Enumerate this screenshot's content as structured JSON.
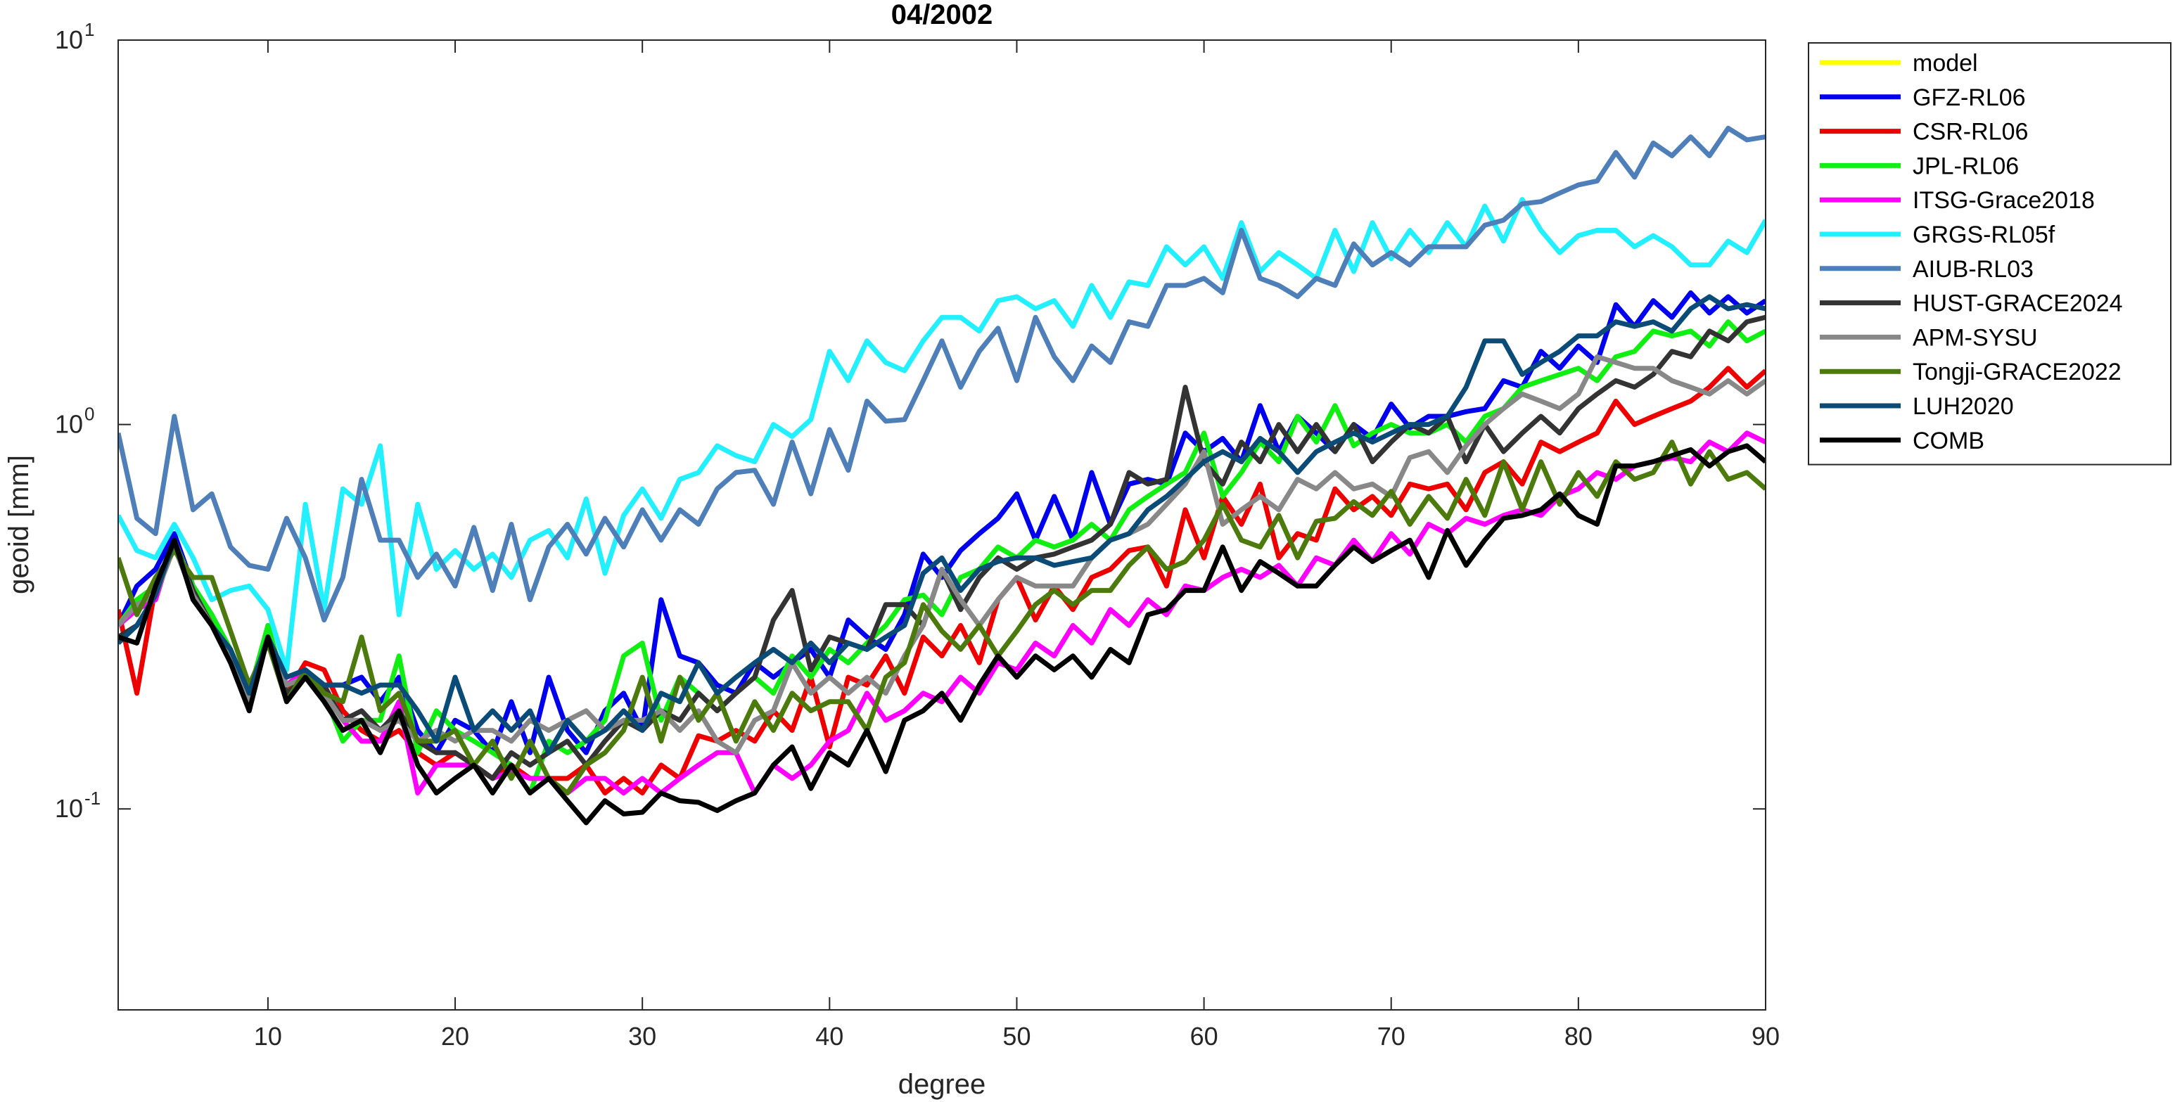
{
  "chart_data": {
    "type": "line",
    "title": "04/2002",
    "xlabel": "degree",
    "ylabel": "geoid [mm]",
    "xlim": [
      2,
      90
    ],
    "ylim": [
      0.03,
      10
    ],
    "log_y": true,
    "legend": "northeastoutside",
    "xticks": [
      10,
      20,
      30,
      40,
      50,
      60,
      70,
      80,
      90
    ],
    "yticks": [
      {
        "value": 0.1,
        "label": "10",
        "exponent": "-1"
      },
      {
        "value": 1,
        "label": "10",
        "exponent": "0"
      },
      {
        "value": 10,
        "label": "10",
        "exponent": "1"
      }
    ],
    "x": [
      2,
      3,
      4,
      5,
      6,
      7,
      8,
      9,
      10,
      11,
      12,
      13,
      14,
      15,
      16,
      17,
      18,
      19,
      20,
      21,
      22,
      23,
      24,
      25,
      26,
      27,
      28,
      29,
      30,
      31,
      32,
      33,
      34,
      35,
      36,
      37,
      38,
      39,
      40,
      41,
      42,
      43,
      44,
      45,
      46,
      47,
      48,
      49,
      50,
      51,
      52,
      53,
      54,
      55,
      56,
      57,
      58,
      59,
      60,
      61,
      62,
      63,
      64,
      65,
      66,
      67,
      68,
      69,
      70,
      71,
      72,
      73,
      74,
      75,
      76,
      77,
      78,
      79,
      80,
      81,
      82,
      83,
      84,
      85,
      86,
      87,
      88,
      89,
      90
    ],
    "series": [
      {
        "name": "model",
        "color": "#ffff00",
        "values": [
          null,
          null,
          null,
          null,
          null,
          null,
          null,
          null,
          null,
          null,
          null,
          null,
          null,
          null,
          null,
          null,
          null,
          null,
          null,
          null,
          null,
          null,
          null,
          null,
          null,
          null,
          null,
          null,
          null,
          null,
          null,
          null,
          null,
          null,
          null,
          null,
          null,
          null,
          null,
          null,
          null,
          null,
          null,
          null,
          null,
          null,
          null,
          null,
          null,
          null,
          null,
          null,
          null,
          null,
          null,
          null,
          null,
          null,
          null,
          null,
          null,
          null,
          null,
          null,
          null,
          null,
          null,
          null,
          null,
          null,
          null,
          null,
          null,
          null,
          null,
          null,
          null,
          null,
          null,
          null,
          null,
          null,
          null,
          null,
          null,
          null,
          null,
          null,
          null
        ]
      },
      {
        "name": "GFZ-RL06",
        "color": "#0000ee",
        "values": [
          0.3,
          0.38,
          0.42,
          0.52,
          0.38,
          0.32,
          0.25,
          0.18,
          0.3,
          0.2,
          0.23,
          0.21,
          0.21,
          0.22,
          0.19,
          0.22,
          0.16,
          0.14,
          0.17,
          0.16,
          0.14,
          0.19,
          0.14,
          0.22,
          0.16,
          0.14,
          0.18,
          0.2,
          0.16,
          0.35,
          0.25,
          0.24,
          0.21,
          0.2,
          0.24,
          0.22,
          0.24,
          0.26,
          0.22,
          0.31,
          0.28,
          0.26,
          0.32,
          0.46,
          0.4,
          0.47,
          0.52,
          0.57,
          0.66,
          0.5,
          0.65,
          0.5,
          0.75,
          0.55,
          0.7,
          0.72,
          0.7,
          0.95,
          0.85,
          0.92,
          0.8,
          1.12,
          0.85,
          1.05,
          0.95,
          0.85,
          1.0,
          0.92,
          1.13,
          0.98,
          1.05,
          1.05,
          1.08,
          1.1,
          1.3,
          1.25,
          1.55,
          1.4,
          1.6,
          1.45,
          2.05,
          1.8,
          2.1,
          1.9,
          2.2,
          1.95,
          2.15,
          1.95,
          2.1
        ]
      },
      {
        "name": "CSR-RL06",
        "color": "#ee0000",
        "values": [
          0.33,
          0.2,
          0.38,
          0.48,
          0.38,
          0.3,
          0.26,
          0.19,
          0.28,
          0.2,
          0.24,
          0.23,
          0.18,
          0.16,
          0.15,
          0.16,
          0.14,
          0.13,
          0.14,
          0.13,
          0.12,
          0.13,
          0.12,
          0.12,
          0.12,
          0.13,
          0.11,
          0.12,
          0.11,
          0.13,
          0.12,
          0.155,
          0.15,
          0.16,
          0.15,
          0.18,
          0.16,
          0.22,
          0.145,
          0.22,
          0.21,
          0.25,
          0.2,
          0.28,
          0.25,
          0.3,
          0.24,
          0.35,
          0.4,
          0.31,
          0.38,
          0.33,
          0.4,
          0.42,
          0.47,
          0.48,
          0.38,
          0.6,
          0.45,
          0.65,
          0.55,
          0.7,
          0.45,
          0.52,
          0.5,
          0.68,
          0.6,
          0.65,
          0.58,
          0.7,
          0.68,
          0.7,
          0.6,
          0.75,
          0.8,
          0.7,
          0.9,
          0.85,
          0.9,
          0.95,
          1.15,
          1.0,
          1.05,
          1.1,
          1.15,
          1.25,
          1.4,
          1.25,
          1.38
        ]
      },
      {
        "name": "JPL-RL06",
        "color": "#11ee11",
        "values": [
          0.3,
          0.35,
          0.38,
          0.5,
          0.38,
          0.32,
          0.26,
          0.2,
          0.3,
          0.2,
          0.22,
          0.2,
          0.15,
          0.17,
          0.17,
          0.25,
          0.14,
          0.18,
          0.16,
          0.15,
          0.14,
          0.13,
          0.11,
          0.15,
          0.14,
          0.15,
          0.17,
          0.25,
          0.27,
          0.17,
          0.22,
          0.2,
          0.18,
          0.2,
          0.22,
          0.2,
          0.25,
          0.22,
          0.26,
          0.24,
          0.27,
          0.3,
          0.35,
          0.36,
          0.32,
          0.4,
          0.42,
          0.48,
          0.45,
          0.5,
          0.48,
          0.5,
          0.55,
          0.5,
          0.6,
          0.65,
          0.7,
          0.75,
          0.95,
          0.65,
          0.75,
          0.9,
          0.8,
          1.05,
          0.9,
          1.12,
          0.88,
          0.95,
          1.0,
          0.95,
          0.95,
          1.0,
          0.9,
          1.05,
          1.1,
          1.25,
          1.3,
          1.35,
          1.4,
          1.3,
          1.5,
          1.55,
          1.75,
          1.7,
          1.75,
          1.6,
          1.85,
          1.65,
          1.75
        ]
      },
      {
        "name": "ITSG-Grace2018",
        "color": "#ff00ff",
        "values": [
          0.3,
          0.33,
          0.35,
          0.5,
          0.37,
          0.3,
          0.25,
          0.19,
          0.28,
          0.21,
          0.23,
          0.2,
          0.17,
          0.15,
          0.15,
          0.19,
          0.11,
          0.13,
          0.13,
          0.13,
          0.12,
          0.125,
          0.12,
          0.12,
          0.11,
          0.12,
          0.12,
          0.11,
          0.12,
          0.11,
          0.12,
          0.13,
          0.14,
          0.14,
          0.11,
          0.13,
          0.12,
          0.13,
          0.15,
          0.16,
          0.2,
          0.17,
          0.18,
          0.2,
          0.19,
          0.22,
          0.2,
          0.24,
          0.23,
          0.27,
          0.25,
          0.3,
          0.27,
          0.33,
          0.3,
          0.35,
          0.32,
          0.38,
          0.37,
          0.4,
          0.42,
          0.4,
          0.43,
          0.38,
          0.45,
          0.43,
          0.5,
          0.44,
          0.52,
          0.46,
          0.55,
          0.52,
          0.57,
          0.55,
          0.58,
          0.6,
          0.58,
          0.65,
          0.68,
          0.75,
          0.72,
          0.78,
          0.8,
          0.82,
          0.8,
          0.9,
          0.85,
          0.95,
          0.9
        ]
      },
      {
        "name": "GRGS-RL05f",
        "color": "#22f0ff",
        "values": [
          0.58,
          0.47,
          0.45,
          0.55,
          0.45,
          0.35,
          0.37,
          0.38,
          0.33,
          0.23,
          0.62,
          0.33,
          0.68,
          0.62,
          0.88,
          0.32,
          0.62,
          0.42,
          0.47,
          0.42,
          0.46,
          0.4,
          0.5,
          0.53,
          0.45,
          0.64,
          0.41,
          0.58,
          0.68,
          0.57,
          0.72,
          0.75,
          0.88,
          0.83,
          0.8,
          1.0,
          0.93,
          1.03,
          1.55,
          1.3,
          1.65,
          1.45,
          1.38,
          1.65,
          1.9,
          1.9,
          1.75,
          2.1,
          2.15,
          2.0,
          2.1,
          1.8,
          2.3,
          1.9,
          2.35,
          2.3,
          2.9,
          2.6,
          2.9,
          2.4,
          3.35,
          2.5,
          2.8,
          2.6,
          2.4,
          3.2,
          2.5,
          3.35,
          2.7,
          3.2,
          2.8,
          3.35,
          2.9,
          3.7,
          3.0,
          3.85,
          3.2,
          2.8,
          3.1,
          3.2,
          3.2,
          2.9,
          3.1,
          2.9,
          2.6,
          2.6,
          3.0,
          2.8,
          3.4
        ]
      },
      {
        "name": "AIUB-RL03",
        "color": "#4f7fb8",
        "values": [
          0.95,
          0.57,
          0.52,
          1.05,
          0.6,
          0.66,
          0.48,
          0.43,
          0.42,
          0.57,
          0.45,
          0.31,
          0.4,
          0.72,
          0.5,
          0.5,
          0.4,
          0.46,
          0.38,
          0.54,
          0.37,
          0.55,
          0.35,
          0.48,
          0.55,
          0.46,
          0.57,
          0.48,
          0.6,
          0.5,
          0.6,
          0.55,
          0.68,
          0.75,
          0.76,
          0.62,
          0.9,
          0.66,
          0.97,
          0.76,
          1.15,
          1.02,
          1.03,
          1.3,
          1.65,
          1.25,
          1.55,
          1.78,
          1.3,
          1.9,
          1.5,
          1.3,
          1.6,
          1.45,
          1.85,
          1.8,
          2.3,
          2.3,
          2.4,
          2.2,
          3.2,
          2.4,
          2.3,
          2.15,
          2.4,
          2.3,
          2.95,
          2.6,
          2.8,
          2.6,
          2.9,
          2.9,
          2.9,
          3.3,
          3.4,
          3.75,
          3.8,
          4.0,
          4.2,
          4.3,
          5.1,
          4.4,
          5.4,
          5.0,
          5.6,
          5.0,
          5.9,
          5.5,
          5.6
        ]
      },
      {
        "name": "HUST-GRACE2024",
        "color": "#333333",
        "values": [
          0.28,
          0.3,
          0.36,
          0.5,
          0.37,
          0.3,
          0.25,
          0.19,
          0.28,
          0.2,
          0.22,
          0.21,
          0.17,
          0.18,
          0.16,
          0.18,
          0.15,
          0.14,
          0.14,
          0.13,
          0.12,
          0.14,
          0.13,
          0.14,
          0.15,
          0.13,
          0.15,
          0.17,
          0.16,
          0.18,
          0.17,
          0.2,
          0.18,
          0.2,
          0.22,
          0.31,
          0.37,
          0.23,
          0.28,
          0.27,
          0.26,
          0.34,
          0.34,
          0.3,
          0.42,
          0.33,
          0.4,
          0.45,
          0.42,
          0.45,
          0.46,
          0.48,
          0.5,
          0.55,
          0.75,
          0.7,
          0.72,
          1.25,
          0.8,
          0.7,
          0.9,
          0.8,
          1.0,
          0.85,
          1.0,
          0.85,
          1.0,
          0.8,
          0.9,
          1.0,
          0.95,
          1.05,
          0.8,
          1.0,
          0.85,
          0.95,
          1.05,
          0.95,
          1.1,
          1.2,
          1.3,
          1.25,
          1.35,
          1.55,
          1.5,
          1.75,
          1.65,
          1.85,
          1.9
        ]
      },
      {
        "name": "APM-SYSU",
        "color": "#888888",
        "values": [
          0.3,
          0.34,
          0.36,
          0.48,
          0.36,
          0.3,
          0.25,
          0.19,
          0.28,
          0.21,
          0.22,
          0.2,
          0.17,
          0.17,
          0.16,
          0.17,
          0.15,
          0.16,
          0.15,
          0.16,
          0.16,
          0.15,
          0.17,
          0.16,
          0.17,
          0.18,
          0.16,
          0.17,
          0.17,
          0.18,
          0.16,
          0.18,
          0.15,
          0.14,
          0.17,
          0.18,
          0.24,
          0.2,
          0.22,
          0.2,
          0.22,
          0.2,
          0.25,
          0.3,
          0.42,
          0.35,
          0.3,
          0.35,
          0.4,
          0.38,
          0.38,
          0.38,
          0.45,
          0.5,
          0.52,
          0.55,
          0.62,
          0.7,
          0.85,
          0.55,
          0.6,
          0.65,
          0.6,
          0.72,
          0.68,
          0.75,
          0.68,
          0.7,
          0.65,
          0.82,
          0.85,
          0.75,
          0.88,
          1.0,
          1.1,
          1.2,
          1.15,
          1.1,
          1.2,
          1.5,
          1.45,
          1.4,
          1.4,
          1.3,
          1.25,
          1.2,
          1.3,
          1.2,
          1.3
        ]
      },
      {
        "name": "Tongji-GRACE2022",
        "color": "#4c7a0c",
        "values": [
          0.45,
          0.32,
          0.4,
          0.47,
          0.4,
          0.4,
          0.29,
          0.21,
          0.27,
          0.19,
          0.23,
          0.2,
          0.19,
          0.28,
          0.18,
          0.2,
          0.15,
          0.15,
          0.16,
          0.13,
          0.15,
          0.12,
          0.15,
          0.12,
          0.11,
          0.13,
          0.14,
          0.16,
          0.22,
          0.15,
          0.22,
          0.17,
          0.2,
          0.15,
          0.19,
          0.16,
          0.2,
          0.18,
          0.19,
          0.19,
          0.16,
          0.22,
          0.24,
          0.34,
          0.29,
          0.26,
          0.3,
          0.25,
          0.29,
          0.34,
          0.37,
          0.34,
          0.37,
          0.37,
          0.43,
          0.48,
          0.42,
          0.44,
          0.5,
          0.62,
          0.5,
          0.48,
          0.58,
          0.45,
          0.56,
          0.57,
          0.63,
          0.58,
          0.67,
          0.55,
          0.65,
          0.57,
          0.72,
          0.58,
          0.8,
          0.6,
          0.8,
          0.62,
          0.75,
          0.65,
          0.8,
          0.72,
          0.75,
          0.9,
          0.7,
          0.85,
          0.72,
          0.75,
          0.68
        ]
      },
      {
        "name": "LUH2020",
        "color": "#0b4b78",
        "values": [
          0.27,
          0.3,
          0.36,
          0.5,
          0.35,
          0.3,
          0.26,
          0.2,
          0.28,
          0.22,
          0.23,
          0.21,
          0.21,
          0.2,
          0.21,
          0.21,
          0.18,
          0.15,
          0.22,
          0.16,
          0.18,
          0.16,
          0.18,
          0.14,
          0.17,
          0.15,
          0.16,
          0.18,
          0.16,
          0.2,
          0.19,
          0.24,
          0.2,
          0.22,
          0.24,
          0.26,
          0.24,
          0.27,
          0.24,
          0.27,
          0.26,
          0.28,
          0.3,
          0.41,
          0.45,
          0.37,
          0.42,
          0.44,
          0.45,
          0.45,
          0.43,
          0.44,
          0.45,
          0.5,
          0.52,
          0.6,
          0.65,
          0.72,
          0.8,
          0.85,
          0.8,
          0.92,
          0.85,
          0.75,
          0.85,
          0.9,
          0.95,
          0.9,
          0.95,
          1.0,
          1.0,
          1.05,
          1.25,
          1.65,
          1.65,
          1.35,
          1.45,
          1.55,
          1.7,
          1.7,
          1.85,
          1.8,
          1.85,
          1.75,
          2.0,
          2.15,
          2.0,
          2.05,
          2.0
        ]
      },
      {
        "name": "COMB",
        "color": "#000000",
        "values": [
          0.28,
          0.27,
          0.38,
          0.5,
          0.35,
          0.3,
          0.24,
          0.18,
          0.28,
          0.19,
          0.22,
          0.19,
          0.16,
          0.17,
          0.14,
          0.18,
          0.13,
          0.11,
          0.12,
          0.13,
          0.11,
          0.13,
          0.11,
          0.12,
          0.105,
          0.092,
          0.105,
          0.097,
          0.098,
          0.11,
          0.105,
          0.104,
          0.099,
          0.105,
          0.11,
          0.13,
          0.145,
          0.113,
          0.14,
          0.13,
          0.16,
          0.125,
          0.17,
          0.18,
          0.2,
          0.17,
          0.21,
          0.25,
          0.22,
          0.25,
          0.23,
          0.25,
          0.22,
          0.26,
          0.24,
          0.32,
          0.33,
          0.37,
          0.37,
          0.48,
          0.37,
          0.44,
          0.41,
          0.38,
          0.38,
          0.43,
          0.48,
          0.44,
          0.47,
          0.5,
          0.4,
          0.53,
          0.43,
          0.5,
          0.57,
          0.58,
          0.6,
          0.66,
          0.58,
          0.55,
          0.78,
          0.78,
          0.8,
          0.83,
          0.86,
          0.78,
          0.85,
          0.88,
          0.8
        ]
      }
    ]
  }
}
